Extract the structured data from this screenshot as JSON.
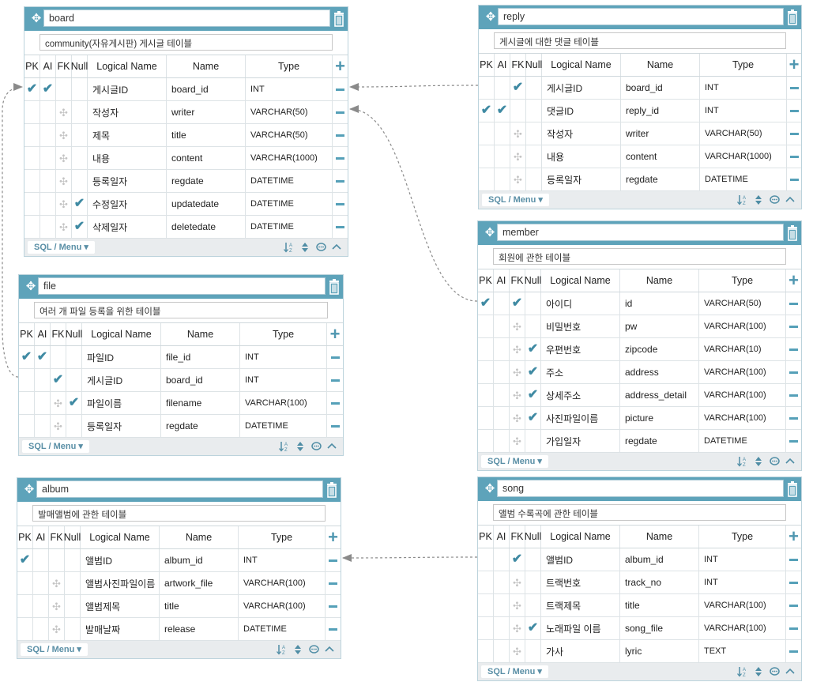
{
  "columns": {
    "pk": "PK",
    "ai": "AI",
    "fk": "FK",
    "null": "Null",
    "logical": "Logical Name",
    "name": "Name",
    "type": "Type"
  },
  "menu_label": "SQL / Menu",
  "icons": {
    "move": "move-icon",
    "delete": "trash-icon",
    "add": "plus-icon",
    "remove": "minus-icon",
    "sort": "sort-az-icon",
    "order": "up-down-icon",
    "comment": "comment-icon",
    "collapse": "chevron-up-icon",
    "check": "check-icon",
    "drag": "drag-handle-icon"
  },
  "colors": {
    "header": "#5ea3ba",
    "accent": "#4f97b0",
    "check": "#3f8aa3",
    "footer": "#e9ecee"
  },
  "tables": [
    {
      "id": "board",
      "name": "board",
      "description": "community(자유게시판) 게시글 테이블",
      "rows": [
        {
          "pk": true,
          "ai": true,
          "fk": false,
          "nul": false,
          "logical": "게시글ID",
          "name": "board_id",
          "type": "INT"
        },
        {
          "pk": false,
          "ai": false,
          "fk": false,
          "nul": false,
          "logical": "작성자",
          "name": "writer",
          "type": "VARCHAR(50)"
        },
        {
          "pk": false,
          "ai": false,
          "fk": false,
          "nul": false,
          "logical": "제목",
          "name": "title",
          "type": "VARCHAR(50)"
        },
        {
          "pk": false,
          "ai": false,
          "fk": false,
          "nul": false,
          "logical": "내용",
          "name": "content",
          "type": "VARCHAR(1000)"
        },
        {
          "pk": false,
          "ai": false,
          "fk": false,
          "nul": false,
          "logical": "등록일자",
          "name": "regdate",
          "type": "DATETIME"
        },
        {
          "pk": false,
          "ai": false,
          "fk": false,
          "nul": true,
          "logical": "수정일자",
          "name": "updatedate",
          "type": "DATETIME"
        },
        {
          "pk": false,
          "ai": false,
          "fk": false,
          "nul": true,
          "logical": "삭제일자",
          "name": "deletedate",
          "type": "DATETIME"
        }
      ]
    },
    {
      "id": "file",
      "name": "file",
      "description": "여러 개 파일 등록을 위한 테이블",
      "rows": [
        {
          "pk": true,
          "ai": true,
          "fk": false,
          "nul": false,
          "logical": "파일ID",
          "name": "file_id",
          "type": "INT"
        },
        {
          "pk": false,
          "ai": false,
          "fk": true,
          "nul": false,
          "logical": "게시글ID",
          "name": "board_id",
          "type": "INT"
        },
        {
          "pk": false,
          "ai": false,
          "fk": false,
          "nul": true,
          "logical": "파일이름",
          "name": "filename",
          "type": "VARCHAR(100)"
        },
        {
          "pk": false,
          "ai": false,
          "fk": false,
          "nul": false,
          "logical": "등록일자",
          "name": "regdate",
          "type": "DATETIME"
        }
      ]
    },
    {
      "id": "album",
      "name": "album",
      "description": "발매앨범에 관한 테이블",
      "rows": [
        {
          "pk": true,
          "ai": false,
          "fk": false,
          "nul": false,
          "logical": "앨범ID",
          "name": "album_id",
          "type": "INT"
        },
        {
          "pk": false,
          "ai": false,
          "fk": false,
          "nul": false,
          "logical": "앨범사진파일이름",
          "name": "artwork_file",
          "type": "VARCHAR(100)"
        },
        {
          "pk": false,
          "ai": false,
          "fk": false,
          "nul": false,
          "logical": "앨범제목",
          "name": "title",
          "type": "VARCHAR(100)"
        },
        {
          "pk": false,
          "ai": false,
          "fk": false,
          "nul": false,
          "logical": "발매날짜",
          "name": "release",
          "type": "DATETIME"
        }
      ]
    },
    {
      "id": "reply",
      "name": "reply",
      "description": "게시글에 대한 댓글 테이블",
      "rows": [
        {
          "pk": false,
          "ai": false,
          "fk": true,
          "nul": false,
          "logical": "게시글ID",
          "name": "board_id",
          "type": "INT"
        },
        {
          "pk": true,
          "ai": true,
          "fk": false,
          "nul": false,
          "logical": "댓글ID",
          "name": "reply_id",
          "type": "INT"
        },
        {
          "pk": false,
          "ai": false,
          "fk": false,
          "nul": false,
          "logical": "작성자",
          "name": "writer",
          "type": "VARCHAR(50)"
        },
        {
          "pk": false,
          "ai": false,
          "fk": false,
          "nul": false,
          "logical": "내용",
          "name": "content",
          "type": "VARCHAR(1000)"
        },
        {
          "pk": false,
          "ai": false,
          "fk": false,
          "nul": false,
          "logical": "등록일자",
          "name": "regdate",
          "type": "DATETIME"
        }
      ]
    },
    {
      "id": "member",
      "name": "member",
      "description": "회원에 관한 테이블",
      "rows": [
        {
          "pk": true,
          "ai": false,
          "fk": true,
          "nul": false,
          "logical": "아이디",
          "name": "id",
          "type": "VARCHAR(50)"
        },
        {
          "pk": false,
          "ai": false,
          "fk": false,
          "nul": false,
          "logical": "비밀번호",
          "name": "pw",
          "type": "VARCHAR(100)"
        },
        {
          "pk": false,
          "ai": false,
          "fk": false,
          "nul": true,
          "logical": "우편번호",
          "name": "zipcode",
          "type": "VARCHAR(10)"
        },
        {
          "pk": false,
          "ai": false,
          "fk": false,
          "nul": true,
          "logical": "주소",
          "name": "address",
          "type": "VARCHAR(100)"
        },
        {
          "pk": false,
          "ai": false,
          "fk": false,
          "nul": true,
          "logical": "상세주소",
          "name": "address_detail",
          "type": "VARCHAR(100)"
        },
        {
          "pk": false,
          "ai": false,
          "fk": false,
          "nul": true,
          "logical": "사진파일이름",
          "name": "picture",
          "type": "VARCHAR(100)"
        },
        {
          "pk": false,
          "ai": false,
          "fk": false,
          "nul": false,
          "logical": "가입일자",
          "name": "regdate",
          "type": "DATETIME"
        }
      ]
    },
    {
      "id": "song",
      "name": "song",
      "description": "앨범 수록곡에 관한 테이블",
      "rows": [
        {
          "pk": false,
          "ai": false,
          "fk": true,
          "nul": false,
          "logical": "앨범ID",
          "name": "album_id",
          "type": "INT"
        },
        {
          "pk": false,
          "ai": false,
          "fk": false,
          "nul": false,
          "logical": "트랙번호",
          "name": "track_no",
          "type": "INT"
        },
        {
          "pk": false,
          "ai": false,
          "fk": false,
          "nul": false,
          "logical": "트랙제목",
          "name": "title",
          "type": "VARCHAR(100)"
        },
        {
          "pk": false,
          "ai": false,
          "fk": false,
          "nul": true,
          "logical": "노래파일 이름",
          "name": "song_file",
          "type": "VARCHAR(100)"
        },
        {
          "pk": false,
          "ai": false,
          "fk": false,
          "nul": false,
          "logical": "가사",
          "name": "lyric",
          "type": "TEXT"
        }
      ]
    }
  ],
  "relations": [
    {
      "from": "reply",
      "from_row": 0,
      "to": "board",
      "to_row": 0
    },
    {
      "from": "member",
      "from_row": 0,
      "to": "board",
      "to_row": 1
    },
    {
      "from": "file",
      "from_row": 1,
      "to": "board",
      "to_row": 0
    },
    {
      "from": "song",
      "from_row": 0,
      "to": "album",
      "to_row": 0
    }
  ]
}
